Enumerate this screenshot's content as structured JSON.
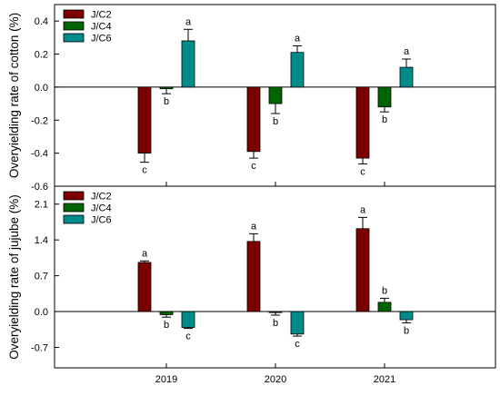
{
  "chart_data": [
    {
      "type": "bar",
      "ylabel": "Overyielding rate of cotton (%)",
      "xlabel": "",
      "ylim": [
        -0.6,
        0.5
      ],
      "yticks": [
        "0.4",
        "0.2",
        "0.0",
        "-0.2",
        "-0.4",
        "-0.6"
      ],
      "ytick_values": [
        0.4,
        0.2,
        0.0,
        -0.2,
        -0.4,
        -0.6
      ],
      "categories": [
        "2019",
        "2020",
        "2021"
      ],
      "show_category_labels": false,
      "legend_position": "top-left",
      "grid": false,
      "series": [
        {
          "name": "J/C2",
          "color": "#7b0000",
          "values": [
            -0.4,
            -0.39,
            -0.43
          ],
          "errors": [
            0.055,
            0.04,
            0.035
          ],
          "letters": [
            "c",
            "c",
            "c"
          ]
        },
        {
          "name": "J/C4",
          "color": "#006400",
          "values": [
            -0.01,
            -0.1,
            -0.12
          ],
          "errors": [
            0.03,
            0.06,
            0.03
          ],
          "letters": [
            "b",
            "b",
            "b"
          ]
        },
        {
          "name": "J/C6",
          "color": "#008b8b",
          "values": [
            0.28,
            0.21,
            0.12
          ],
          "errors": [
            0.07,
            0.04,
            0.05
          ],
          "letters": [
            "a",
            "a",
            "a"
          ]
        }
      ]
    },
    {
      "type": "bar",
      "ylabel": "Overyielding rate of jujube (%)",
      "xlabel": "",
      "ylim": [
        -1.1,
        2.45
      ],
      "yticks": [
        "2.1",
        "1.4",
        "0.7",
        "0.0",
        "-0.7"
      ],
      "ytick_values": [
        2.1,
        1.4,
        0.7,
        0.0,
        -0.7
      ],
      "categories": [
        "2019",
        "2020",
        "2021"
      ],
      "show_category_labels": true,
      "legend_position": "top-left",
      "grid": false,
      "series": [
        {
          "name": "J/C2",
          "color": "#7b0000",
          "values": [
            0.96,
            1.37,
            1.62
          ],
          "errors": [
            0.03,
            0.15,
            0.22
          ],
          "letters": [
            "a",
            "a",
            "a"
          ]
        },
        {
          "name": "J/C4",
          "color": "#006400",
          "values": [
            -0.06,
            -0.02,
            0.18
          ],
          "errors": [
            0.05,
            0.05,
            0.08
          ],
          "letters": [
            "b",
            "b",
            "b"
          ]
        },
        {
          "name": "J/C6",
          "color": "#008b8b",
          "values": [
            -0.31,
            -0.44,
            -0.16
          ],
          "errors": [
            0.02,
            0.04,
            0.06
          ],
          "letters": [
            "c",
            "c",
            "b"
          ]
        }
      ]
    }
  ]
}
